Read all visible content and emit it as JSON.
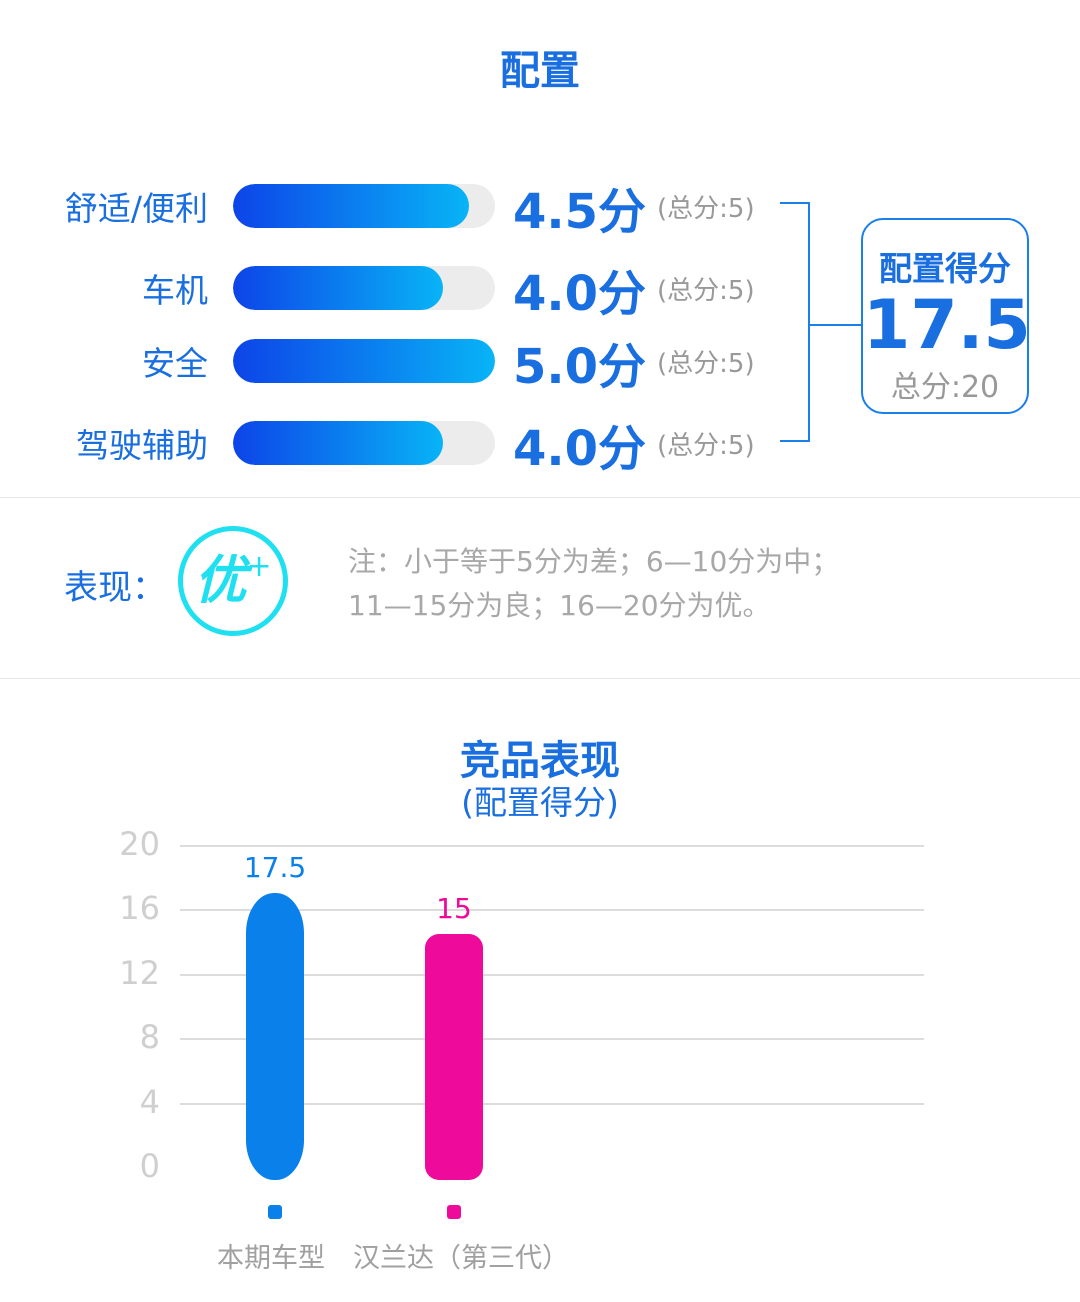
{
  "header": {
    "title": "配置"
  },
  "rows": [
    {
      "label": "舒适/便利",
      "score_text": "4.5分",
      "total_text": "(总分:5)",
      "value": 4.5,
      "max": 5
    },
    {
      "label": "车机",
      "score_text": "4.0分",
      "total_text": "(总分:5)",
      "value": 4.0,
      "max": 5
    },
    {
      "label": "安全",
      "score_text": "5.0分",
      "total_text": "(总分:5)",
      "value": 5.0,
      "max": 5
    },
    {
      "label": "驾驶辅助",
      "score_text": "4.0分",
      "total_text": "(总分:5)",
      "value": 4.0,
      "max": 5
    }
  ],
  "summary": {
    "label": "配置得分",
    "score": "17.5",
    "total": "总分:20"
  },
  "performance": {
    "label": "表现：",
    "badge": "优",
    "badge_sup": "+",
    "note_line1": "注：小于等于5分为差；6—10分为中；",
    "note_line2": "11—15分为良；16—20分为优。"
  },
  "colors": {
    "accent": "#1a6fe0",
    "series1": "#0a80ea",
    "series2": "#ee0a9a",
    "badge": "#1ee0f0"
  },
  "chart_data": {
    "type": "bar",
    "title": "竞品表现",
    "subtitle": "(配置得分)",
    "categories": [
      "本期车型",
      "汉兰达（第三代）"
    ],
    "values": [
      17.5,
      15
    ],
    "value_labels": [
      "17.5",
      "15"
    ],
    "ylim": [
      0,
      20
    ],
    "yticks": [
      "0",
      "4",
      "8",
      "12",
      "16",
      "20"
    ],
    "grid": true,
    "legend": "bottom"
  }
}
